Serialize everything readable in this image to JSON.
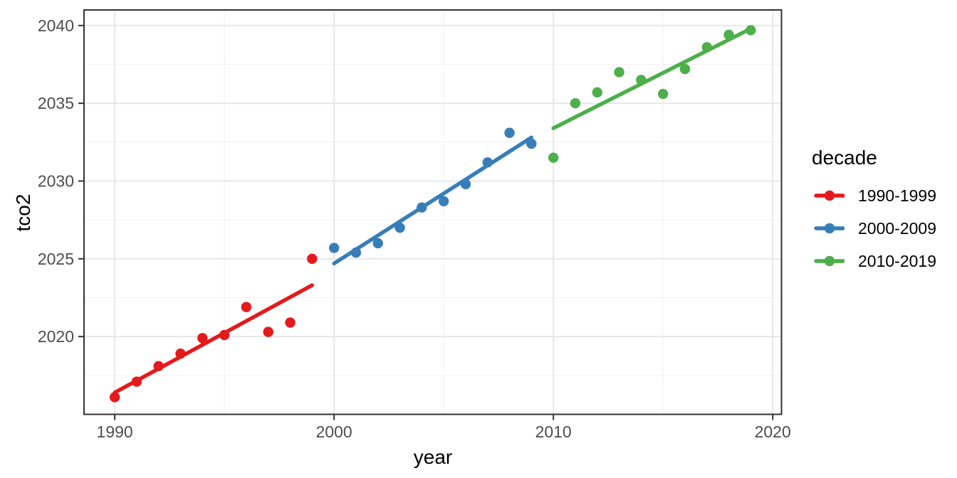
{
  "figure": {
    "background": "#FFFFFF"
  },
  "chart_data": {
    "type": "scatter",
    "title": "",
    "xlabel": "year",
    "ylabel": "tco2",
    "xlim": [
      1988.6,
      2020.4
    ],
    "ylim": [
      2015.0,
      2041.0
    ],
    "x_major_ticks": [
      1990,
      2000,
      2010,
      2020
    ],
    "x_minor_gridlines": [
      1995,
      2005,
      2015
    ],
    "y_major_ticks": [
      2020,
      2025,
      2030,
      2035,
      2040
    ],
    "y_minor_gridlines": [
      2017.5,
      2022.5,
      2027.5,
      2032.5,
      2037.5
    ],
    "grid": true,
    "legend": {
      "title": "decade",
      "position": "right"
    },
    "series": [
      {
        "name": "1990-1999",
        "color": "#E41A1C",
        "x": [
          1990,
          1991,
          1992,
          1993,
          1994,
          1995,
          1996,
          1997,
          1998,
          1999
        ],
        "y": [
          2016.1,
          2017.1,
          2018.1,
          2018.9,
          2019.9,
          2020.1,
          2021.9,
          2020.3,
          2020.9,
          2025.0
        ],
        "trend": {
          "x_start": 1990,
          "x_end": 1999,
          "y_start": 2016.4,
          "y_end": 2023.3
        }
      },
      {
        "name": "2000-2009",
        "color": "#377EB8",
        "x": [
          2000,
          2001,
          2002,
          2003,
          2004,
          2005,
          2006,
          2007,
          2008,
          2009
        ],
        "y": [
          2025.7,
          2025.4,
          2026.0,
          2027.0,
          2028.3,
          2028.7,
          2029.8,
          2031.2,
          2033.1,
          2032.4
        ],
        "trend": {
          "x_start": 2000,
          "x_end": 2009,
          "y_start": 2024.7,
          "y_end": 2032.8
        }
      },
      {
        "name": "2010-2019",
        "color": "#4DAF4A",
        "x": [
          2010,
          2011,
          2012,
          2013,
          2014,
          2015,
          2016,
          2017,
          2018,
          2019
        ],
        "y": [
          2031.5,
          2035.0,
          2035.7,
          2037.0,
          2036.5,
          2035.6,
          2037.2,
          2038.6,
          2039.4,
          2039.7
        ],
        "trend": {
          "x_start": 2010,
          "x_end": 2019,
          "y_start": 2033.4,
          "y_end": 2039.8
        }
      }
    ],
    "style": {
      "panel_border": "#333333",
      "grid_major": "#E7E7E7",
      "grid_minor": "#F2F2F2",
      "tick_color": "#333333",
      "axis_text_color": "#4D4D4D",
      "axis_title_color": "#000000",
      "point_radius": 7.2,
      "trend_width": 5.4
    }
  }
}
